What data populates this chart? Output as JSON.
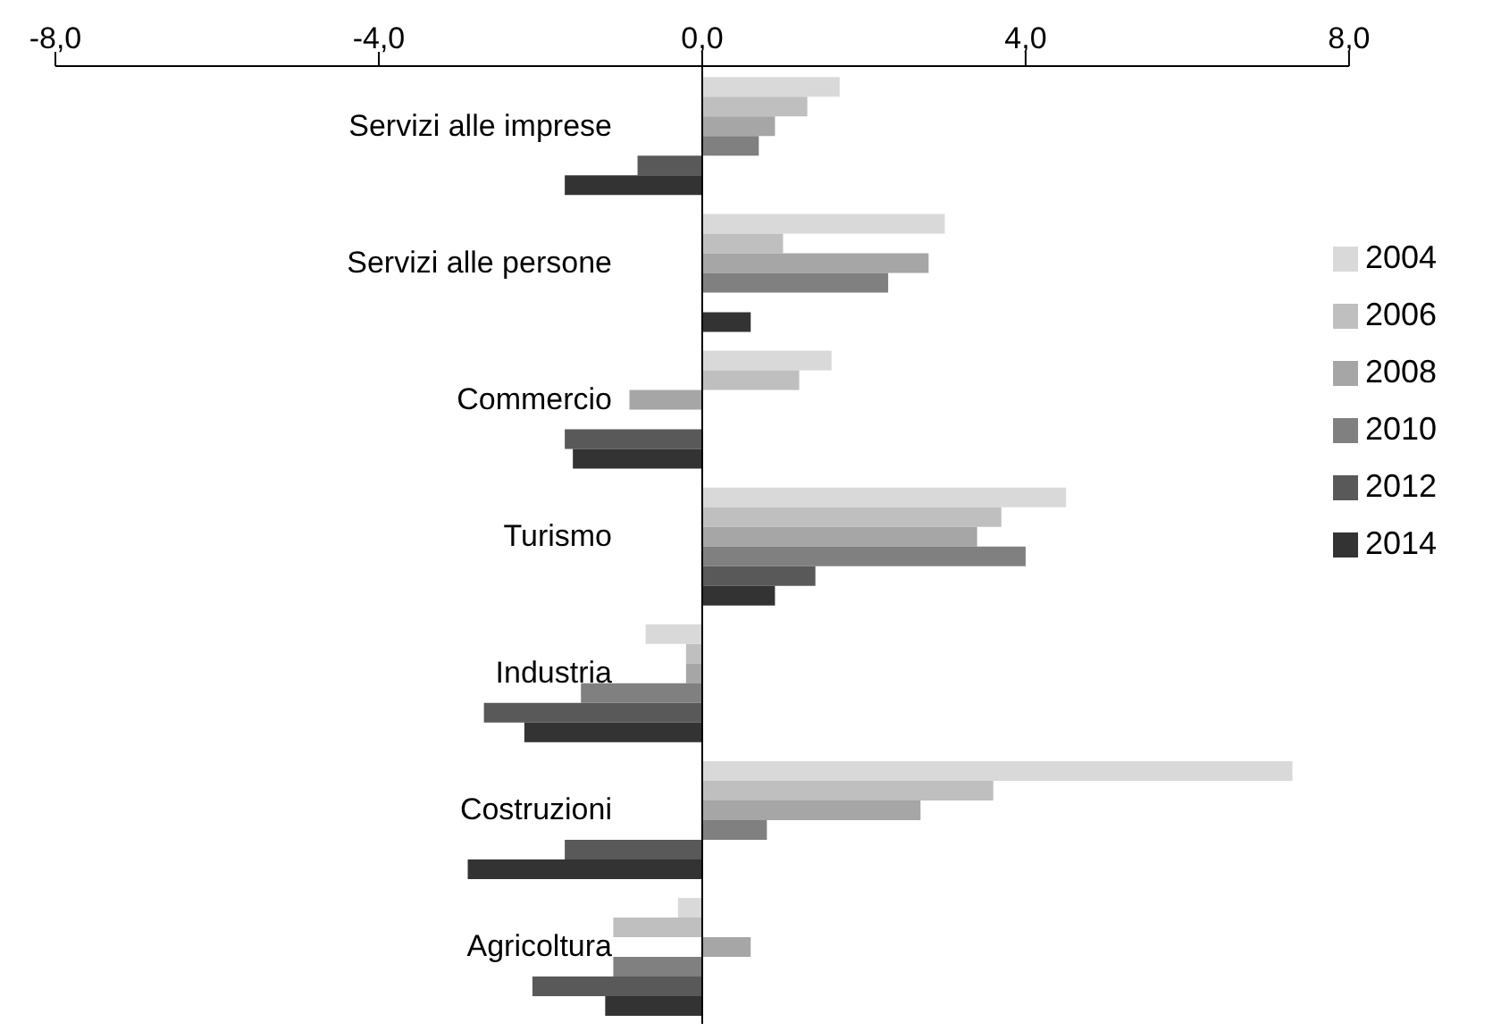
{
  "chart_data": {
    "type": "bar",
    "orientation": "horizontal",
    "categories": [
      "Servizi alle imprese",
      "Servizi alle persone",
      "Commercio",
      "Turismo",
      "Industria",
      "Costruzioni",
      "Agricoltura"
    ],
    "series": [
      {
        "name": "2004",
        "color": "#d9d9d9",
        "values": [
          1.7,
          3.0,
          1.6,
          4.5,
          -0.7,
          7.3,
          -0.3
        ]
      },
      {
        "name": "2006",
        "color": "#bfbfbf",
        "values": [
          1.3,
          1.0,
          1.2,
          3.7,
          -0.2,
          3.6,
          -1.1
        ]
      },
      {
        "name": "2008",
        "color": "#a6a6a6",
        "values": [
          0.9,
          2.8,
          -0.9,
          3.4,
          -0.2,
          2.7,
          0.6
        ]
      },
      {
        "name": "2010",
        "color": "#808080",
        "values": [
          0.7,
          2.3,
          0,
          4.0,
          -1.5,
          0.8,
          -1.1
        ]
      },
      {
        "name": "2012",
        "color": "#595959",
        "values": [
          -0.8,
          0,
          -1.7,
          1.4,
          -2.7,
          -1.7,
          -2.1
        ]
      },
      {
        "name": "2014",
        "color": "#333333",
        "values": [
          -1.7,
          0.6,
          -1.6,
          0.9,
          -2.2,
          -2.9,
          -1.2
        ]
      }
    ],
    "xlim": [
      -8,
      8
    ],
    "xticks": [
      {
        "value": -8,
        "label": "-8,0"
      },
      {
        "value": -4,
        "label": "-4,0"
      },
      {
        "value": 0,
        "label": "0,0"
      },
      {
        "value": 4,
        "label": "4,0"
      },
      {
        "value": 8,
        "label": "8,0"
      }
    ],
    "legend": "right"
  }
}
